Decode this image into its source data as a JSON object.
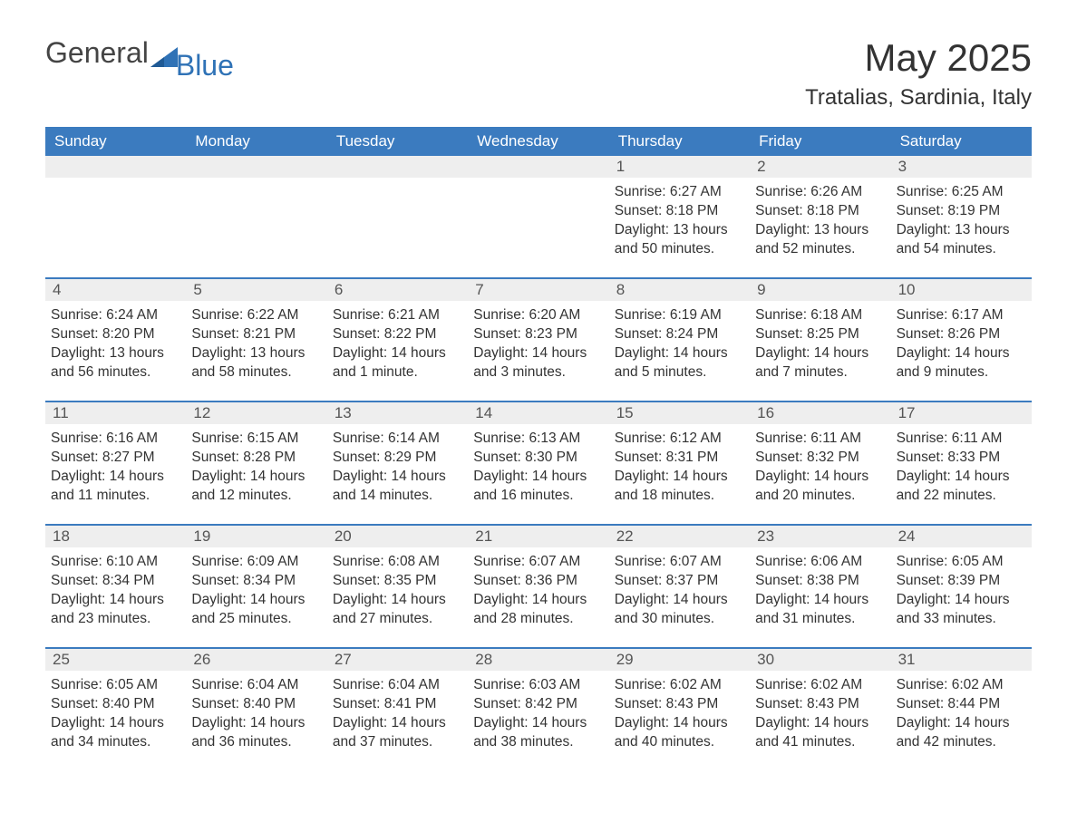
{
  "logo": {
    "text1": "General",
    "text2": "Blue"
  },
  "header": {
    "month_title": "May 2025",
    "location": "Tratalias, Sardinia, Italy"
  },
  "colors": {
    "header_bg": "#3b7bbf",
    "header_text": "#ffffff",
    "daynum_bg": "#eeeeee",
    "week_border": "#3b7bbf",
    "body_text": "#333333",
    "logo_blue": "#2f72b6"
  },
  "day_headers": [
    "Sunday",
    "Monday",
    "Tuesday",
    "Wednesday",
    "Thursday",
    "Friday",
    "Saturday"
  ],
  "weeks": [
    [
      {
        "empty": true
      },
      {
        "empty": true
      },
      {
        "empty": true
      },
      {
        "empty": true
      },
      {
        "num": "1",
        "sunrise": "Sunrise: 6:27 AM",
        "sunset": "Sunset: 8:18 PM",
        "daylight": "Daylight: 13 hours and 50 minutes."
      },
      {
        "num": "2",
        "sunrise": "Sunrise: 6:26 AM",
        "sunset": "Sunset: 8:18 PM",
        "daylight": "Daylight: 13 hours and 52 minutes."
      },
      {
        "num": "3",
        "sunrise": "Sunrise: 6:25 AM",
        "sunset": "Sunset: 8:19 PM",
        "daylight": "Daylight: 13 hours and 54 minutes."
      }
    ],
    [
      {
        "num": "4",
        "sunrise": "Sunrise: 6:24 AM",
        "sunset": "Sunset: 8:20 PM",
        "daylight": "Daylight: 13 hours and 56 minutes."
      },
      {
        "num": "5",
        "sunrise": "Sunrise: 6:22 AM",
        "sunset": "Sunset: 8:21 PM",
        "daylight": "Daylight: 13 hours and 58 minutes."
      },
      {
        "num": "6",
        "sunrise": "Sunrise: 6:21 AM",
        "sunset": "Sunset: 8:22 PM",
        "daylight": "Daylight: 14 hours and 1 minute."
      },
      {
        "num": "7",
        "sunrise": "Sunrise: 6:20 AM",
        "sunset": "Sunset: 8:23 PM",
        "daylight": "Daylight: 14 hours and 3 minutes."
      },
      {
        "num": "8",
        "sunrise": "Sunrise: 6:19 AM",
        "sunset": "Sunset: 8:24 PM",
        "daylight": "Daylight: 14 hours and 5 minutes."
      },
      {
        "num": "9",
        "sunrise": "Sunrise: 6:18 AM",
        "sunset": "Sunset: 8:25 PM",
        "daylight": "Daylight: 14 hours and 7 minutes."
      },
      {
        "num": "10",
        "sunrise": "Sunrise: 6:17 AM",
        "sunset": "Sunset: 8:26 PM",
        "daylight": "Daylight: 14 hours and 9 minutes."
      }
    ],
    [
      {
        "num": "11",
        "sunrise": "Sunrise: 6:16 AM",
        "sunset": "Sunset: 8:27 PM",
        "daylight": "Daylight: 14 hours and 11 minutes."
      },
      {
        "num": "12",
        "sunrise": "Sunrise: 6:15 AM",
        "sunset": "Sunset: 8:28 PM",
        "daylight": "Daylight: 14 hours and 12 minutes."
      },
      {
        "num": "13",
        "sunrise": "Sunrise: 6:14 AM",
        "sunset": "Sunset: 8:29 PM",
        "daylight": "Daylight: 14 hours and 14 minutes."
      },
      {
        "num": "14",
        "sunrise": "Sunrise: 6:13 AM",
        "sunset": "Sunset: 8:30 PM",
        "daylight": "Daylight: 14 hours and 16 minutes."
      },
      {
        "num": "15",
        "sunrise": "Sunrise: 6:12 AM",
        "sunset": "Sunset: 8:31 PM",
        "daylight": "Daylight: 14 hours and 18 minutes."
      },
      {
        "num": "16",
        "sunrise": "Sunrise: 6:11 AM",
        "sunset": "Sunset: 8:32 PM",
        "daylight": "Daylight: 14 hours and 20 minutes."
      },
      {
        "num": "17",
        "sunrise": "Sunrise: 6:11 AM",
        "sunset": "Sunset: 8:33 PM",
        "daylight": "Daylight: 14 hours and 22 minutes."
      }
    ],
    [
      {
        "num": "18",
        "sunrise": "Sunrise: 6:10 AM",
        "sunset": "Sunset: 8:34 PM",
        "daylight": "Daylight: 14 hours and 23 minutes."
      },
      {
        "num": "19",
        "sunrise": "Sunrise: 6:09 AM",
        "sunset": "Sunset: 8:34 PM",
        "daylight": "Daylight: 14 hours and 25 minutes."
      },
      {
        "num": "20",
        "sunrise": "Sunrise: 6:08 AM",
        "sunset": "Sunset: 8:35 PM",
        "daylight": "Daylight: 14 hours and 27 minutes."
      },
      {
        "num": "21",
        "sunrise": "Sunrise: 6:07 AM",
        "sunset": "Sunset: 8:36 PM",
        "daylight": "Daylight: 14 hours and 28 minutes."
      },
      {
        "num": "22",
        "sunrise": "Sunrise: 6:07 AM",
        "sunset": "Sunset: 8:37 PM",
        "daylight": "Daylight: 14 hours and 30 minutes."
      },
      {
        "num": "23",
        "sunrise": "Sunrise: 6:06 AM",
        "sunset": "Sunset: 8:38 PM",
        "daylight": "Daylight: 14 hours and 31 minutes."
      },
      {
        "num": "24",
        "sunrise": "Sunrise: 6:05 AM",
        "sunset": "Sunset: 8:39 PM",
        "daylight": "Daylight: 14 hours and 33 minutes."
      }
    ],
    [
      {
        "num": "25",
        "sunrise": "Sunrise: 6:05 AM",
        "sunset": "Sunset: 8:40 PM",
        "daylight": "Daylight: 14 hours and 34 minutes."
      },
      {
        "num": "26",
        "sunrise": "Sunrise: 6:04 AM",
        "sunset": "Sunset: 8:40 PM",
        "daylight": "Daylight: 14 hours and 36 minutes."
      },
      {
        "num": "27",
        "sunrise": "Sunrise: 6:04 AM",
        "sunset": "Sunset: 8:41 PM",
        "daylight": "Daylight: 14 hours and 37 minutes."
      },
      {
        "num": "28",
        "sunrise": "Sunrise: 6:03 AM",
        "sunset": "Sunset: 8:42 PM",
        "daylight": "Daylight: 14 hours and 38 minutes."
      },
      {
        "num": "29",
        "sunrise": "Sunrise: 6:02 AM",
        "sunset": "Sunset: 8:43 PM",
        "daylight": "Daylight: 14 hours and 40 minutes."
      },
      {
        "num": "30",
        "sunrise": "Sunrise: 6:02 AM",
        "sunset": "Sunset: 8:43 PM",
        "daylight": "Daylight: 14 hours and 41 minutes."
      },
      {
        "num": "31",
        "sunrise": "Sunrise: 6:02 AM",
        "sunset": "Sunset: 8:44 PM",
        "daylight": "Daylight: 14 hours and 42 minutes."
      }
    ]
  ]
}
